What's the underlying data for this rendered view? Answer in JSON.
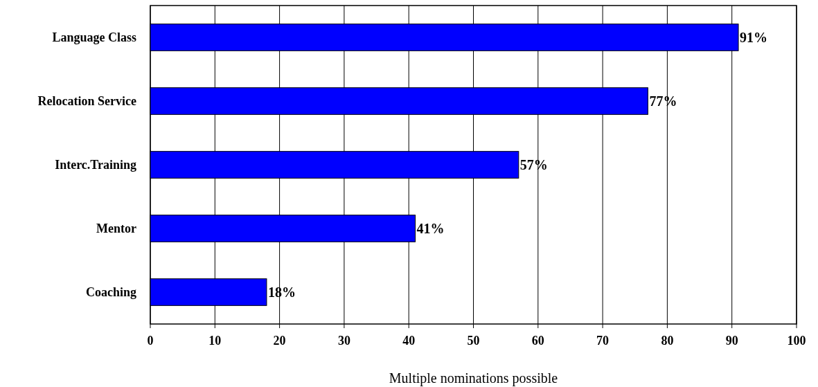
{
  "chart_data": {
    "type": "bar",
    "orientation": "horizontal",
    "categories": [
      "Language Class",
      "Relocation Service",
      "Interc.Training",
      "Mentor",
      "Coaching"
    ],
    "values": [
      91,
      77,
      57,
      41,
      18
    ],
    "value_labels": [
      "91%",
      "77%",
      "57%",
      "41%",
      "18%"
    ],
    "color": "#0000ff",
    "xlim": [
      0,
      100
    ],
    "xticks": [
      0,
      10,
      20,
      30,
      40,
      50,
      60,
      70,
      80,
      90,
      100
    ],
    "grid": "x",
    "xlabel": "Multiple nominations possible"
  }
}
